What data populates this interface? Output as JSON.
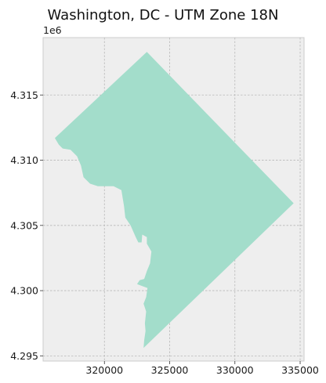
{
  "chart_data": {
    "type": "map",
    "title": "Washington, DC - UTM Zone 18N",
    "xlim": [
      315300,
      335300
    ],
    "ylim": [
      4294600,
      4319400
    ],
    "offset_label": "1e6",
    "xticks": [
      {
        "value": 320000,
        "label": "320000"
      },
      {
        "value": 325000,
        "label": "325000"
      },
      {
        "value": 330000,
        "label": "330000"
      },
      {
        "value": 335000,
        "label": "335000"
      }
    ],
    "yticks": [
      {
        "value": 4295000,
        "label": "4.295"
      },
      {
        "value": 4300000,
        "label": "4.300"
      },
      {
        "value": 4305000,
        "label": "4.305"
      },
      {
        "value": 4310000,
        "label": "4.310"
      },
      {
        "value": 4315000,
        "label": "4.315"
      }
    ],
    "grid": true,
    "colors": {
      "axes_background": "#eeeeee",
      "grid": "#b8b8b8",
      "polygon_fill": "#a3ddcb",
      "axes_edge": "#cccccc"
    },
    "polygon": [
      [
        323250,
        4318300
      ],
      [
        334500,
        4306700
      ],
      [
        323000,
        4295600
      ],
      [
        323050,
        4296200
      ],
      [
        323150,
        4296900
      ],
      [
        323100,
        4297500
      ],
      [
        323200,
        4298400
      ],
      [
        323000,
        4299000
      ],
      [
        323200,
        4299500
      ],
      [
        323300,
        4300200
      ],
      [
        322500,
        4300500
      ],
      [
        322700,
        4300800
      ],
      [
        323050,
        4300900
      ],
      [
        323250,
        4301500
      ],
      [
        323500,
        4302100
      ],
      [
        323600,
        4303000
      ],
      [
        323250,
        4303600
      ],
      [
        323250,
        4304100
      ],
      [
        322900,
        4304300
      ],
      [
        322850,
        4303700
      ],
      [
        322600,
        4303700
      ],
      [
        322400,
        4304100
      ],
      [
        322000,
        4305000
      ],
      [
        321600,
        4305600
      ],
      [
        321500,
        4306500
      ],
      [
        321300,
        4307700
      ],
      [
        320700,
        4308000
      ],
      [
        319500,
        4308000
      ],
      [
        318900,
        4308200
      ],
      [
        318400,
        4308700
      ],
      [
        318200,
        4309600
      ],
      [
        317900,
        4310300
      ],
      [
        317400,
        4310800
      ],
      [
        316800,
        4310900
      ],
      [
        316500,
        4311200
      ],
      [
        316200,
        4311700
      ]
    ]
  }
}
